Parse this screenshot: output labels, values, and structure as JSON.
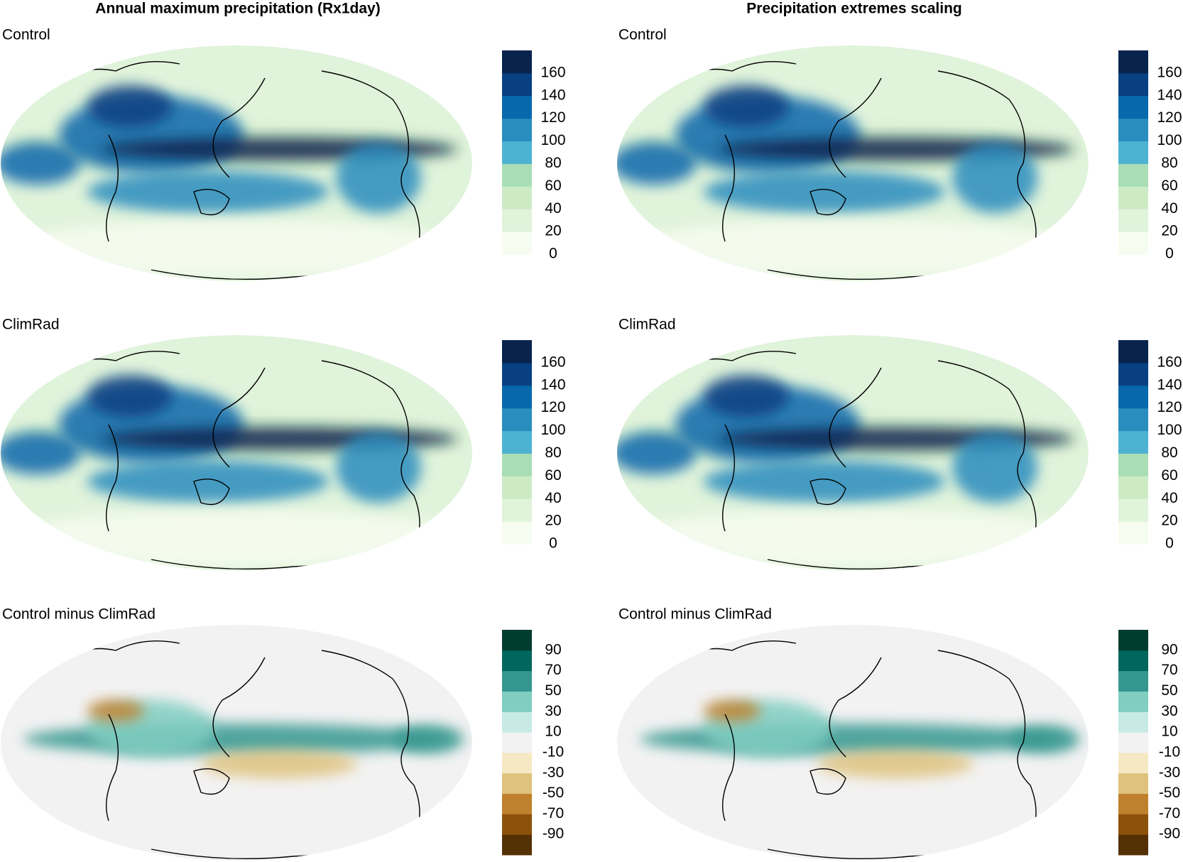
{
  "columns": [
    {
      "title": "Annual maximum precipitation (Rx1day)",
      "panels": [
        {
          "label": "Control",
          "colorbar": {
            "lim": [
              0,
              180
            ],
            "ticks": [
              0,
              20,
              40,
              60,
              80,
              100,
              120,
              140,
              160
            ],
            "colors": [
              "#f7fcf0",
              "#e0f3db",
              "#ccebc5",
              "#a8ddb5",
              "#4eb3d3",
              "#2b8cbe",
              "#0868ac",
              "#084081",
              "#08244d"
            ]
          }
        },
        {
          "label": "ClimRad",
          "colorbar": {
            "lim": [
              0,
              180
            ],
            "ticks": [
              0,
              20,
              40,
              60,
              80,
              100,
              120,
              140,
              160
            ],
            "colors": [
              "#f7fcf0",
              "#e0f3db",
              "#ccebc5",
              "#a8ddb5",
              "#4eb3d3",
              "#2b8cbe",
              "#0868ac",
              "#084081",
              "#08244d"
            ]
          }
        },
        {
          "label": "Control minus ClimRad",
          "colorbar": {
            "lim": [
              -110,
              110
            ],
            "ticks": [
              -90,
              -70,
              -50,
              -30,
              -10,
              10,
              30,
              50,
              70,
              90
            ],
            "colors": [
              "#543005",
              "#8c510a",
              "#bf812d",
              "#dfc27d",
              "#f6e8c3",
              "#f2f2f2",
              "#c7eae5",
              "#80cdc1",
              "#35978f",
              "#01665e",
              "#003c30"
            ]
          }
        }
      ]
    },
    {
      "title": "Precipitation extremes scaling",
      "panels": [
        {
          "label": "Control",
          "colorbar": {
            "lim": [
              0,
              180
            ],
            "ticks": [
              0,
              20,
              40,
              60,
              80,
              100,
              120,
              140,
              160
            ],
            "colors": [
              "#f7fcf0",
              "#e0f3db",
              "#ccebc5",
              "#a8ddb5",
              "#4eb3d3",
              "#2b8cbe",
              "#0868ac",
              "#084081",
              "#08244d"
            ]
          }
        },
        {
          "label": "ClimRad",
          "colorbar": {
            "lim": [
              0,
              180
            ],
            "ticks": [
              0,
              20,
              40,
              60,
              80,
              100,
              120,
              140,
              160
            ],
            "colors": [
              "#f7fcf0",
              "#e0f3db",
              "#ccebc5",
              "#a8ddb5",
              "#4eb3d3",
              "#2b8cbe",
              "#0868ac",
              "#084081",
              "#08244d"
            ]
          }
        },
        {
          "label": "Control minus ClimRad",
          "colorbar": {
            "lim": [
              -110,
              110
            ],
            "ticks": [
              -90,
              -70,
              -50,
              -30,
              -10,
              10,
              30,
              50,
              70,
              90
            ],
            "colors": [
              "#543005",
              "#8c510a",
              "#bf812d",
              "#dfc27d",
              "#f6e8c3",
              "#f2f2f2",
              "#c7eae5",
              "#80cdc1",
              "#35978f",
              "#01665e",
              "#003c30"
            ]
          }
        }
      ]
    }
  ]
}
